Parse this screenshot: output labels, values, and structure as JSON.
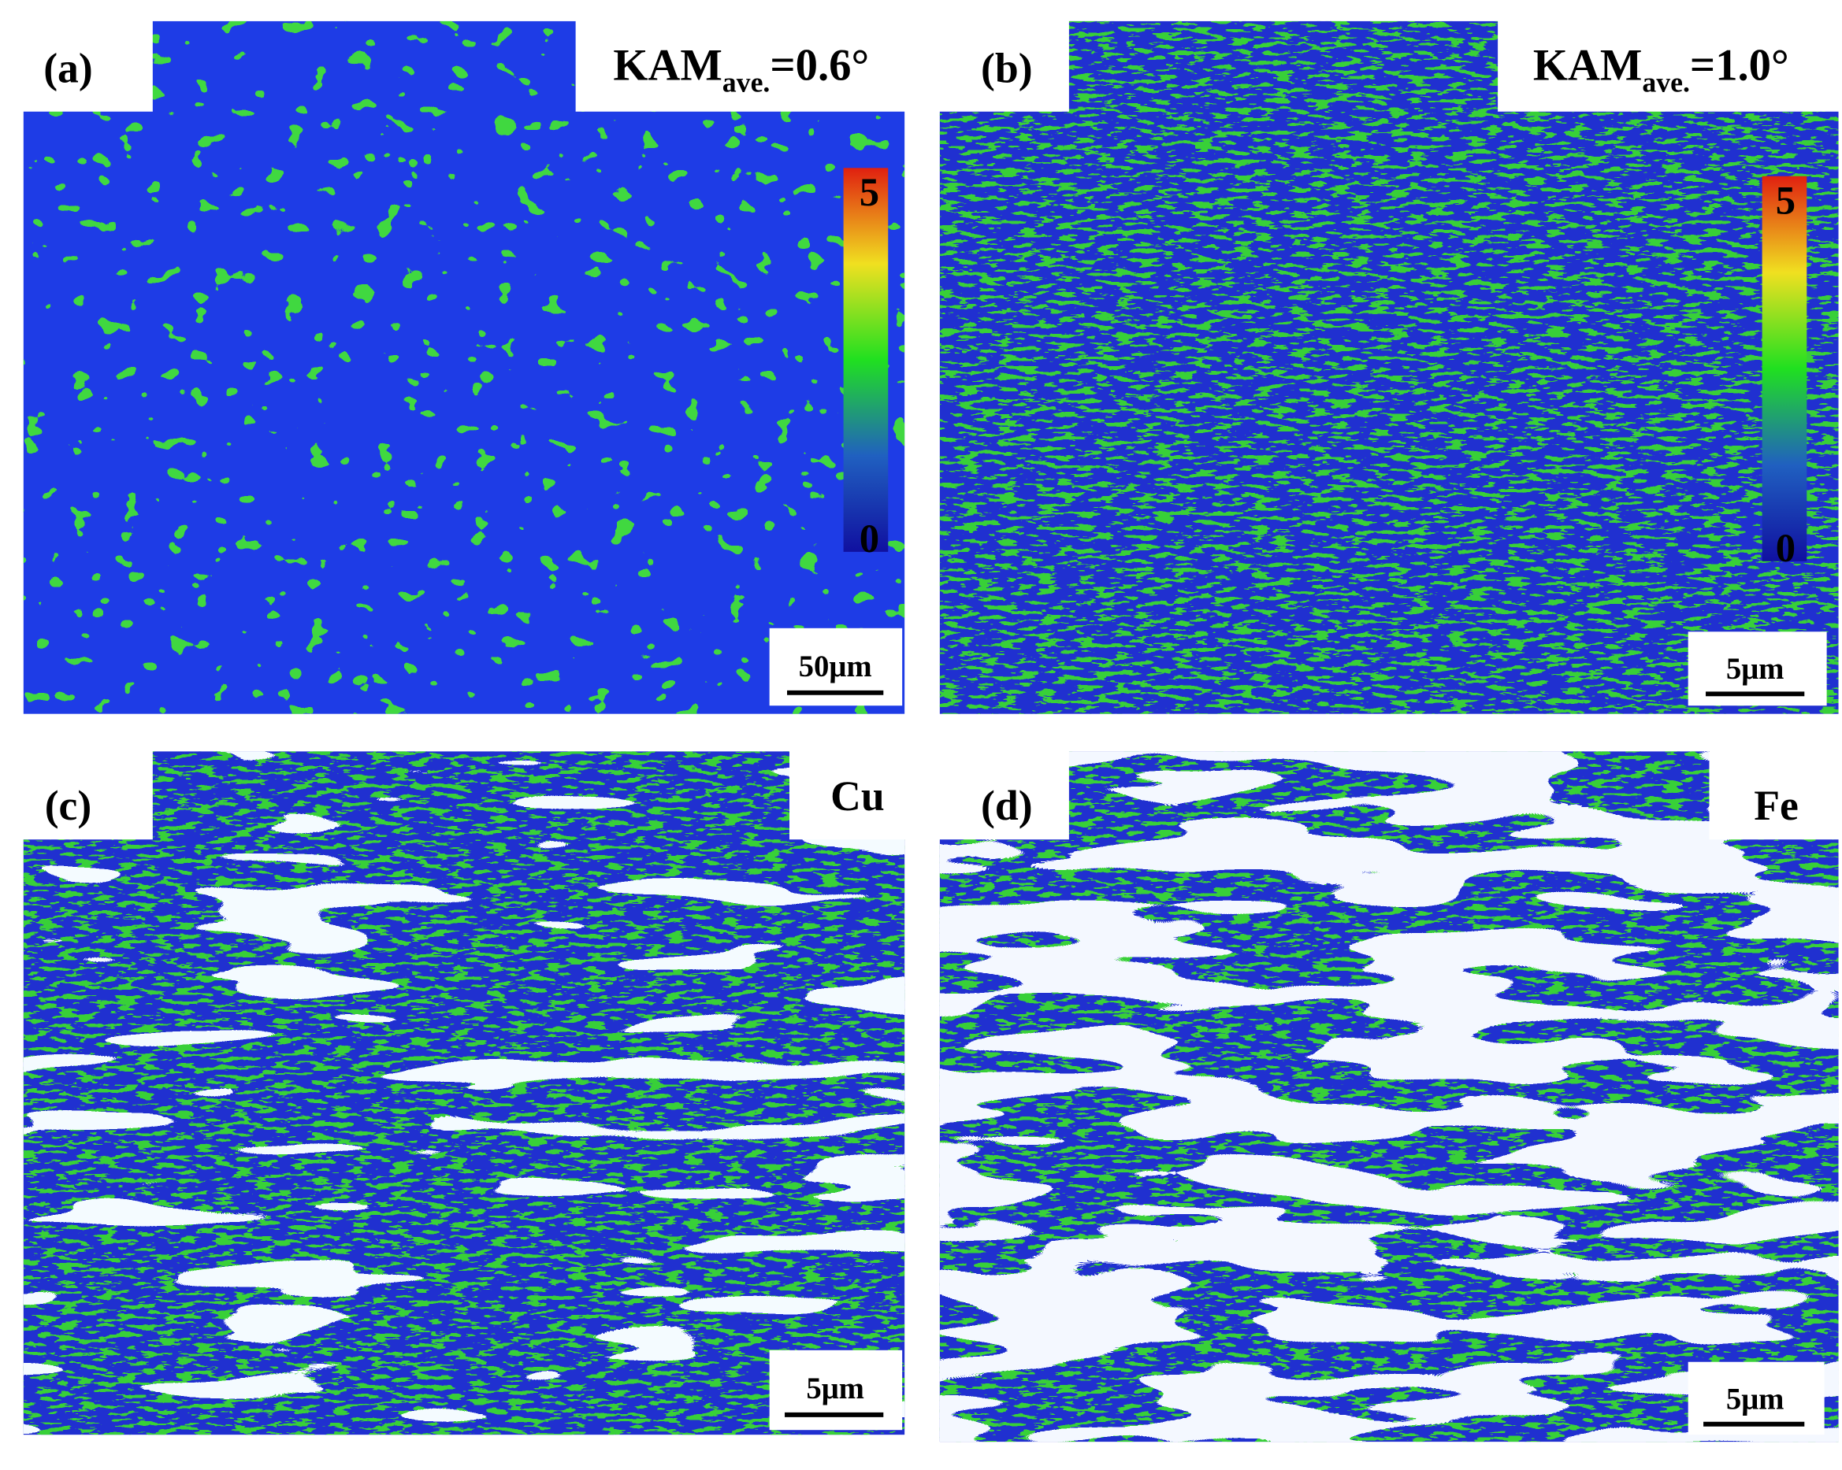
{
  "panels": [
    {
      "label": "(a)",
      "annotation": {
        "main": "KAM",
        "sub": "ave.",
        "rest": "=0.6°"
      },
      "colorbar": {
        "top": "5",
        "bottom": "0"
      },
      "scalebar": "50μm"
    },
    {
      "label": "(b)",
      "annotation": {
        "main": "KAM",
        "sub": "ave.",
        "rest": "=1.0°"
      },
      "colorbar": {
        "top": "5",
        "bottom": "0"
      },
      "scalebar": "5μm"
    },
    {
      "label": "(c)",
      "annotation": {
        "main": "Cu"
      },
      "scalebar": "5μm"
    },
    {
      "label": "(d)",
      "annotation": {
        "main": "Fe"
      },
      "scalebar": "5μm"
    }
  ]
}
